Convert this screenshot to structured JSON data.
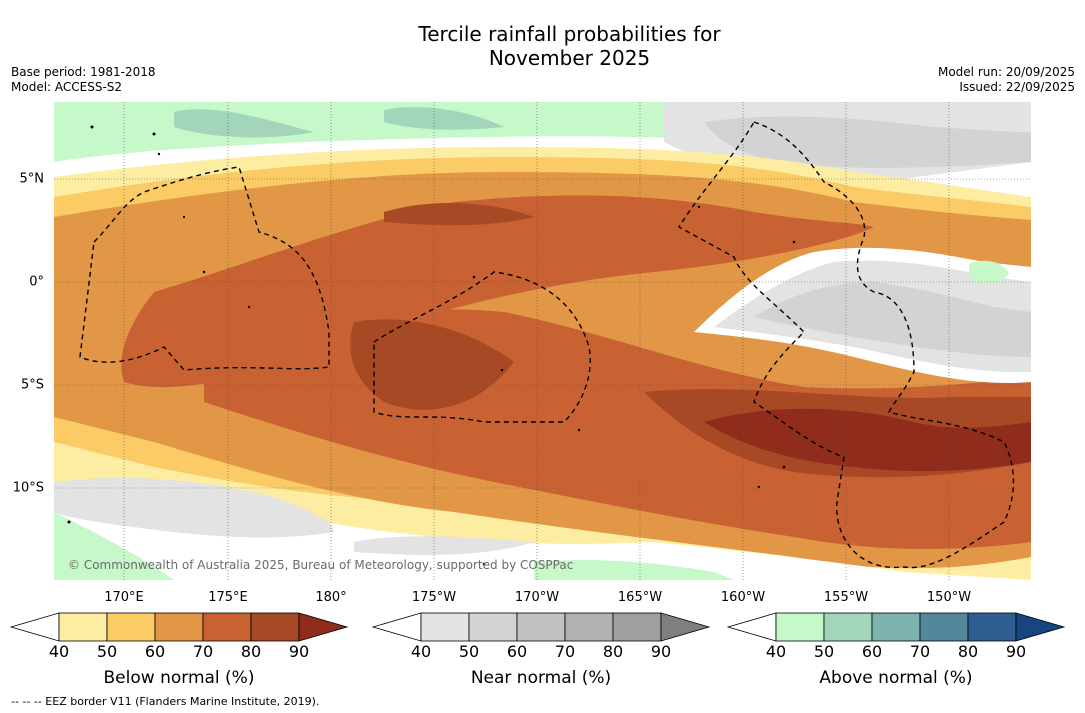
{
  "title": {
    "line1": "Tercile rainfall probabilities for",
    "line2": "November 2025"
  },
  "base_period": "Base period: 1981-2018",
  "model": "Model: ACCESS-S2",
  "model_run": "Model run: 20/09/2025",
  "issued": "Issued: 22/09/2025",
  "lon_labels": [
    "170°E",
    "175°E",
    "180°",
    "175°W",
    "170°W",
    "165°W",
    "160°W",
    "155°W",
    "150°W"
  ],
  "lat_labels": [
    "5°N",
    "0°",
    "5°S",
    "10°S"
  ],
  "copyright": "© Commonwealth of Australia 2025, Bureau of Meteorology, supported by COSPPac",
  "colorbars": [
    {
      "title": "Below normal (%)",
      "ticks": [
        "40",
        "50",
        "60",
        "70",
        "80",
        "90"
      ],
      "colors": [
        "#ffffff",
        "#fdeda3",
        "#fbcb65",
        "#e29747",
        "#c96232",
        "#a84926",
        "#8f2c1c"
      ]
    },
    {
      "title": "Near normal (%)",
      "ticks": [
        "40",
        "50",
        "60",
        "70",
        "80",
        "90"
      ],
      "colors": [
        "#ffffff",
        "#e3e3e3",
        "#d3d3d3",
        "#c2c2c2",
        "#b1b1b1",
        "#9f9f9f",
        "#7f7f7f"
      ]
    },
    {
      "title": "Above normal (%)",
      "ticks": [
        "40",
        "50",
        "60",
        "70",
        "80",
        "90"
      ],
      "colors": [
        "#ffffff",
        "#c6f8c9",
        "#a3d5bb",
        "#7cb3ad",
        "#52879c",
        "#2f5f92",
        "#18457f"
      ]
    }
  ],
  "footnote": "--  --  -- EEZ border V11 (Flanders Marine Institute, 2019)."
}
